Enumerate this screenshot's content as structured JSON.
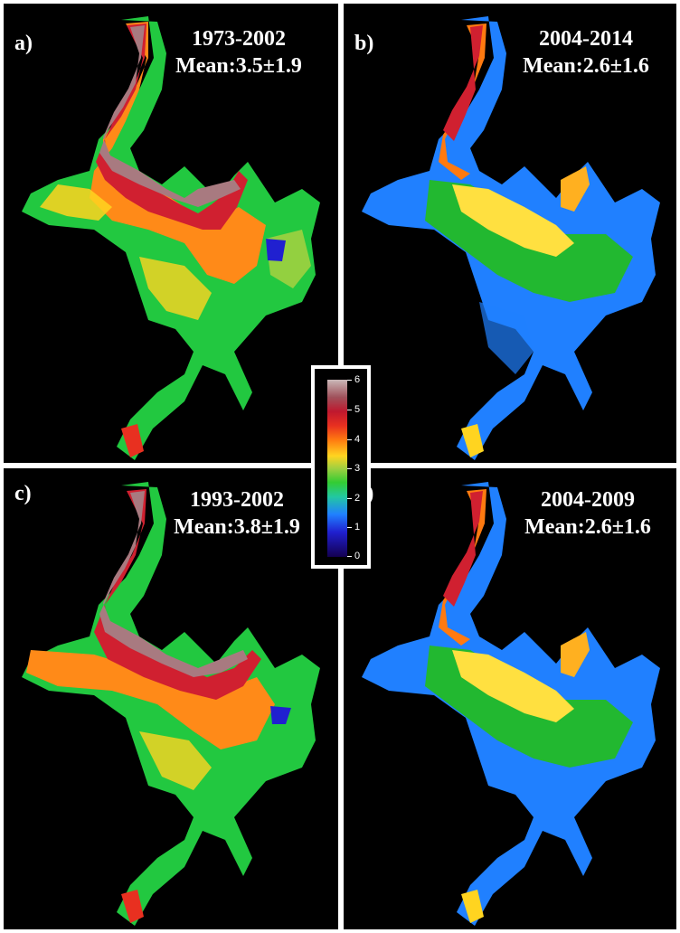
{
  "panels": [
    {
      "label": "a)",
      "period": "1973-2002",
      "mean": "Mean:3.5±1.9"
    },
    {
      "label": "b)",
      "period": "2004-2014",
      "mean": "Mean:2.6±1.6"
    },
    {
      "label": "c)",
      "period": "1993-2002",
      "mean": "Mean:3.8±1.9"
    },
    {
      "label": "d)",
      "period": "2004-2009",
      "mean": "Mean:2.6±1.6"
    }
  ],
  "colorbar": {
    "ticks": [
      "6",
      "5",
      "4",
      "3",
      "2",
      "1",
      "0"
    ],
    "range": [
      0,
      6
    ],
    "colors": [
      "#140050",
      "#2020d0",
      "#2080ff",
      "#22c8a0",
      "#33cc33",
      "#a0d040",
      "#ffd420",
      "#ff7a10",
      "#e83020",
      "#c0182e",
      "#a0505a",
      "#c9b8b8"
    ]
  }
}
